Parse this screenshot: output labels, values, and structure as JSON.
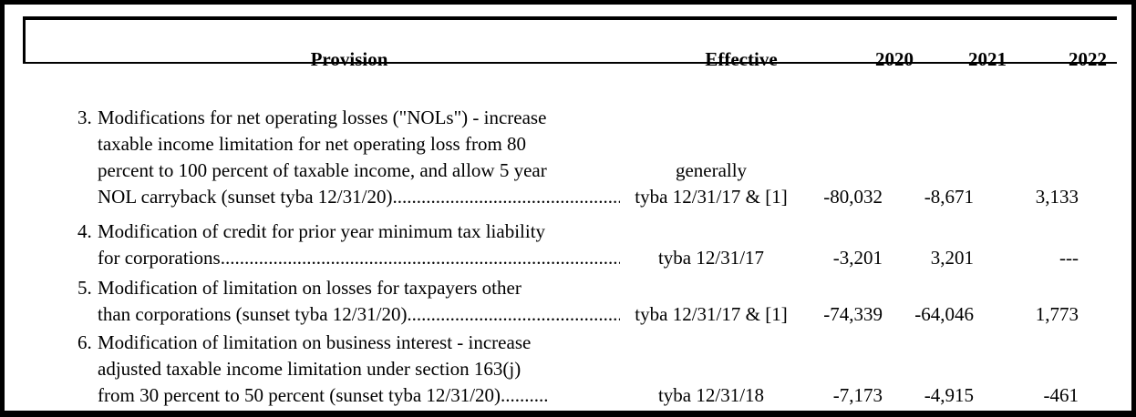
{
  "table": {
    "columns": {
      "provision": "Provision",
      "effective": "Effective",
      "y2020": "2020",
      "y2021": "2021",
      "y2022": "2022"
    },
    "rows": [
      {
        "number": "3.",
        "lines": [
          "Modifications for net operating losses (\"NOLs\") - increase",
          "taxable income limitation for net operating loss from 80",
          "percent to 100 percent of taxable income, and allow 5 year",
          "NOL carryback (sunset tyba 12/31/20)............................................................"
        ],
        "effective_lines": [
          "generally",
          "tyba 12/31/17 & [1]"
        ],
        "y2020": "-80,032",
        "y2021": "-8,671",
        "y2022": "3,133"
      },
      {
        "number": "4.",
        "lines": [
          "Modification of credit for prior year minimum tax liability",
          "for corporations.........................................................................................."
        ],
        "effective_lines": [
          "tyba 12/31/17"
        ],
        "y2020": "-3,201",
        "y2021": "3,201",
        "y2022": "---"
      },
      {
        "number": "5.",
        "lines": [
          "Modification of limitation on losses for taxpayers other",
          "than corporations (sunset tyba 12/31/20).................................................."
        ],
        "effective_lines": [
          "tyba 12/31/17 & [1]"
        ],
        "y2020": "-74,339",
        "y2021": "-64,046",
        "y2022": "1,773"
      },
      {
        "number": "6.",
        "lines": [
          "Modification of limitation on business interest - increase",
          "adjusted taxable income limitation under section 163(j)",
          "from 30 percent to 50 percent (sunset tyba 12/31/20).........."
        ],
        "effective_lines": [
          "tyba 12/31/18"
        ],
        "y2020": "-7,173",
        "y2021": "-4,915",
        "y2022": "-461"
      }
    ],
    "colors": {
      "text": "#000000",
      "background": "#ffffff",
      "border": "#000000"
    }
  }
}
